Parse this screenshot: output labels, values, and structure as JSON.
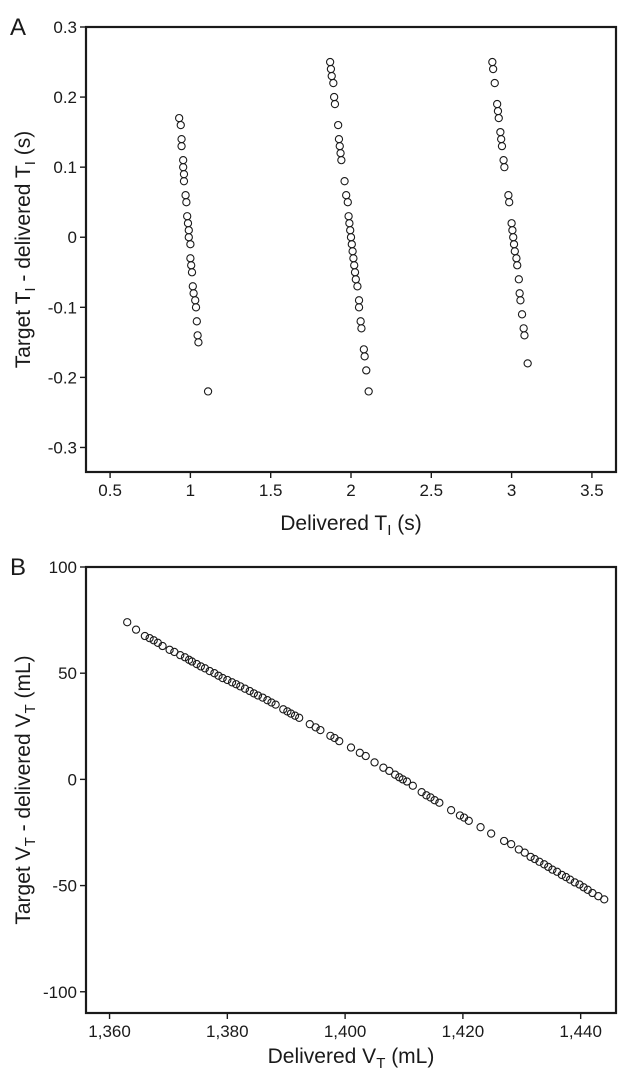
{
  "chart_data": [
    {
      "panel": "A",
      "type": "scatter",
      "xlabel_parts": [
        "Delivered T",
        "I",
        " (s)"
      ],
      "ylabel_parts": [
        "Target T",
        "I",
        " - delivered T",
        "I",
        " (s)"
      ],
      "xlim": [
        0.35,
        3.65
      ],
      "ylim": [
        -0.335,
        0.3
      ],
      "xticks": [
        0.5,
        1,
        1.5,
        2,
        2.5,
        3,
        3.5
      ],
      "xtick_labels": [
        "0.5",
        "1",
        "1.5",
        "2",
        "2.5",
        "3",
        "3.5"
      ],
      "yticks": [
        -0.3,
        -0.2,
        -0.1,
        0,
        0.1,
        0.2,
        0.3
      ],
      "ytick_labels": [
        "-0.3",
        "-0.2",
        "-0.1",
        "0",
        "0.1",
        "0.2",
        "0.3"
      ],
      "grid": false,
      "points": [
        [
          0.93,
          0.17
        ],
        [
          0.94,
          0.16
        ],
        [
          0.945,
          0.14
        ],
        [
          0.945,
          0.13
        ],
        [
          0.955,
          0.11
        ],
        [
          0.955,
          0.1
        ],
        [
          0.96,
          0.09
        ],
        [
          0.96,
          0.08
        ],
        [
          0.97,
          0.06
        ],
        [
          0.975,
          0.05
        ],
        [
          0.98,
          0.03
        ],
        [
          0.985,
          0.02
        ],
        [
          0.99,
          0.01
        ],
        [
          0.99,
          0.0
        ],
        [
          1.0,
          -0.01
        ],
        [
          1.0,
          -0.03
        ],
        [
          1.005,
          -0.04
        ],
        [
          1.01,
          -0.05
        ],
        [
          1.015,
          -0.07
        ],
        [
          1.02,
          -0.08
        ],
        [
          1.03,
          -0.09
        ],
        [
          1.035,
          -0.1
        ],
        [
          1.04,
          -0.12
        ],
        [
          1.045,
          -0.14
        ],
        [
          1.05,
          -0.15
        ],
        [
          1.11,
          -0.22
        ],
        [
          1.87,
          0.25
        ],
        [
          1.875,
          0.24
        ],
        [
          1.88,
          0.23
        ],
        [
          1.89,
          0.22
        ],
        [
          1.895,
          0.2
        ],
        [
          1.9,
          0.19
        ],
        [
          1.92,
          0.16
        ],
        [
          1.925,
          0.14
        ],
        [
          1.93,
          0.13
        ],
        [
          1.935,
          0.12
        ],
        [
          1.94,
          0.11
        ],
        [
          1.96,
          0.08
        ],
        [
          1.97,
          0.06
        ],
        [
          1.98,
          0.05
        ],
        [
          1.985,
          0.03
        ],
        [
          1.99,
          0.02
        ],
        [
          1.995,
          0.01
        ],
        [
          2.0,
          0.0
        ],
        [
          2.005,
          -0.01
        ],
        [
          2.01,
          -0.02
        ],
        [
          2.015,
          -0.03
        ],
        [
          2.02,
          -0.04
        ],
        [
          2.025,
          -0.05
        ],
        [
          2.03,
          -0.06
        ],
        [
          2.04,
          -0.07
        ],
        [
          2.05,
          -0.09
        ],
        [
          2.05,
          -0.1
        ],
        [
          2.06,
          -0.12
        ],
        [
          2.065,
          -0.13
        ],
        [
          2.08,
          -0.16
        ],
        [
          2.085,
          -0.17
        ],
        [
          2.095,
          -0.19
        ],
        [
          2.11,
          -0.22
        ],
        [
          2.88,
          0.25
        ],
        [
          2.885,
          0.24
        ],
        [
          2.895,
          0.22
        ],
        [
          2.91,
          0.19
        ],
        [
          2.915,
          0.18
        ],
        [
          2.92,
          0.17
        ],
        [
          2.93,
          0.15
        ],
        [
          2.935,
          0.14
        ],
        [
          2.94,
          0.13
        ],
        [
          2.95,
          0.11
        ],
        [
          2.955,
          0.1
        ],
        [
          2.98,
          0.06
        ],
        [
          2.985,
          0.05
        ],
        [
          3.0,
          0.02
        ],
        [
          3.005,
          0.01
        ],
        [
          3.01,
          0.0
        ],
        [
          3.015,
          -0.01
        ],
        [
          3.02,
          -0.02
        ],
        [
          3.03,
          -0.03
        ],
        [
          3.035,
          -0.04
        ],
        [
          3.045,
          -0.06
        ],
        [
          3.05,
          -0.08
        ],
        [
          3.055,
          -0.09
        ],
        [
          3.065,
          -0.11
        ],
        [
          3.075,
          -0.13
        ],
        [
          3.08,
          -0.14
        ],
        [
          3.1,
          -0.18
        ]
      ]
    },
    {
      "panel": "B",
      "type": "scatter",
      "xlabel_parts": [
        "Delivered V",
        "T",
        " (mL)"
      ],
      "ylabel_parts": [
        "Target V",
        "T",
        " - delivered V",
        "T",
        " (mL)"
      ],
      "xlim": [
        1356,
        1446
      ],
      "ylim": [
        -110,
        100
      ],
      "xticks": [
        1360,
        1380,
        1400,
        1420,
        1440
      ],
      "xtick_labels": [
        "1,360",
        "1,380",
        "1,400",
        "1,420",
        "1,440"
      ],
      "yticks": [
        -100,
        -50,
        0,
        50,
        100
      ],
      "ytick_labels": [
        "-100",
        "-50",
        "0",
        "50",
        "100"
      ],
      "grid": false,
      "points": [
        [
          1363,
          74
        ],
        [
          1364.5,
          70.5
        ],
        [
          1366,
          67.5
        ],
        [
          1366.8,
          66.5
        ],
        [
          1367.5,
          65.5
        ],
        [
          1368.2,
          64.3
        ],
        [
          1369,
          62.8
        ],
        [
          1370.2,
          61
        ],
        [
          1371,
          60
        ],
        [
          1372,
          58.5
        ],
        [
          1372.8,
          57.5
        ],
        [
          1373.5,
          56.3
        ],
        [
          1374,
          55.5
        ],
        [
          1374.8,
          54.3
        ],
        [
          1375.5,
          53.2
        ],
        [
          1376.2,
          52.3
        ],
        [
          1377,
          51
        ],
        [
          1377.8,
          50
        ],
        [
          1378.5,
          48.8
        ],
        [
          1379.2,
          47.7
        ],
        [
          1380,
          46.8
        ],
        [
          1380.8,
          45.7
        ],
        [
          1381.5,
          44.8
        ],
        [
          1382.2,
          43.8
        ],
        [
          1383,
          42.7
        ],
        [
          1383.8,
          41.6
        ],
        [
          1384.5,
          40.5
        ],
        [
          1385.2,
          39.5
        ],
        [
          1386,
          38.5
        ],
        [
          1386.8,
          37.3
        ],
        [
          1387.5,
          36.2
        ],
        [
          1388.2,
          35.2
        ],
        [
          1389.5,
          33
        ],
        [
          1390.2,
          32
        ],
        [
          1390.8,
          31
        ],
        [
          1391.5,
          30
        ],
        [
          1392.2,
          29
        ],
        [
          1394,
          26
        ],
        [
          1395,
          24.5
        ],
        [
          1395.8,
          23.2
        ],
        [
          1397.5,
          20.5
        ],
        [
          1398.2,
          19.5
        ],
        [
          1399,
          18
        ],
        [
          1401,
          15
        ],
        [
          1402.5,
          12.5
        ],
        [
          1403.5,
          11
        ],
        [
          1405,
          8
        ],
        [
          1406.5,
          5.5
        ],
        [
          1407.5,
          4
        ],
        [
          1408.5,
          2.2
        ],
        [
          1409.2,
          1
        ],
        [
          1409.8,
          0
        ],
        [
          1410.5,
          -1
        ],
        [
          1411.5,
          -3
        ],
        [
          1413,
          -6
        ],
        [
          1413.8,
          -7.5
        ],
        [
          1414.5,
          -8.5
        ],
        [
          1415.2,
          -9.8
        ],
        [
          1416,
          -11
        ],
        [
          1418,
          -14.5
        ],
        [
          1419.5,
          -17
        ],
        [
          1420.2,
          -18
        ],
        [
          1421,
          -19.5
        ],
        [
          1423,
          -22.5
        ],
        [
          1424.8,
          -25.5
        ],
        [
          1427,
          -29
        ],
        [
          1428.2,
          -30.5
        ],
        [
          1429.5,
          -33
        ],
        [
          1430.5,
          -34.5
        ],
        [
          1431.5,
          -36.5
        ],
        [
          1432.2,
          -37.5
        ],
        [
          1433,
          -38.8
        ],
        [
          1433.8,
          -40
        ],
        [
          1434.5,
          -41.2
        ],
        [
          1435.2,
          -42.5
        ],
        [
          1436,
          -43.5
        ],
        [
          1436.8,
          -45
        ],
        [
          1437.5,
          -46
        ],
        [
          1438.2,
          -47.2
        ],
        [
          1439,
          -48.5
        ],
        [
          1439.8,
          -49.5
        ],
        [
          1440.5,
          -50.8
        ],
        [
          1441.2,
          -52
        ],
        [
          1442,
          -53.5
        ],
        [
          1443,
          -55
        ],
        [
          1444,
          -56.5
        ]
      ]
    }
  ]
}
